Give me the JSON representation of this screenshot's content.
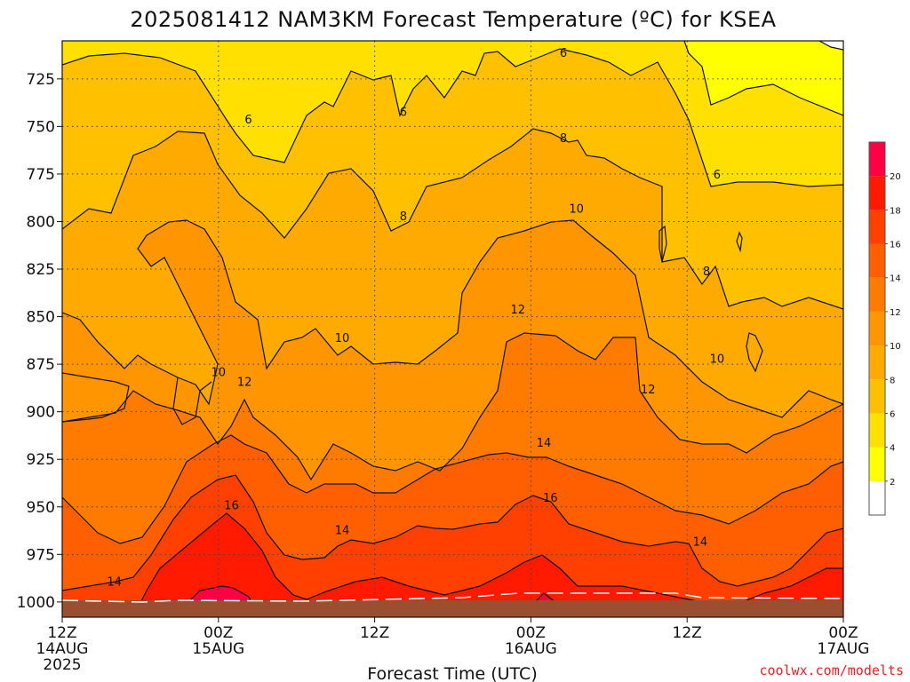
{
  "page": {
    "title": "2025081412 NAM3KM Forecast Temperature (ºC) for KSEA",
    "credit": "coolwx.com/modelts"
  },
  "chart_data": {
    "type": "heatmap",
    "title": "2025081412 NAM3KM Forecast Temperature (ºC) for KSEA",
    "xlabel": "Forecast Time (UTC)",
    "ylabel": "",
    "x_ticks": [
      {
        "hours": 0,
        "lines": [
          "12Z",
          "14AUG",
          "2025"
        ]
      },
      {
        "hours": 12,
        "lines": [
          "00Z",
          "15AUG"
        ]
      },
      {
        "hours": 24,
        "lines": [
          "12Z"
        ]
      },
      {
        "hours": 36,
        "lines": [
          "00Z",
          "16AUG"
        ]
      },
      {
        "hours": 48,
        "lines": [
          "12Z"
        ]
      },
      {
        "hours": 60,
        "lines": [
          "00Z",
          "17AUG"
        ]
      }
    ],
    "xlim": [
      0,
      60
    ],
    "y_ticks": [
      725,
      750,
      775,
      800,
      825,
      850,
      875,
      900,
      925,
      950,
      975,
      1000
    ],
    "ylim": [
      1008,
      705
    ],
    "grid": true,
    "colorbar": {
      "ticks": [
        2,
        4,
        6,
        8,
        10,
        12,
        14,
        16,
        18,
        20
      ],
      "levels": [
        0,
        2,
        4,
        6,
        8,
        10,
        12,
        14,
        16,
        18,
        20,
        22
      ],
      "colors": [
        "#ffffff",
        "#ffff00",
        "#ffe000",
        "#ffc000",
        "#ffaa00",
        "#ff9500",
        "#ff7b00",
        "#ff5f00",
        "#ff4000",
        "#ff1a00",
        "#ff0044"
      ]
    },
    "contour_labels": [
      {
        "text": "6",
        "hours": 38.5,
        "p": 711
      },
      {
        "text": "6",
        "hours": 26.2,
        "p": 742
      },
      {
        "text": "6",
        "hours": 14.3,
        "p": 746
      },
      {
        "text": "8",
        "hours": 38.5,
        "p": 756
      },
      {
        "text": "6",
        "hours": 50.3,
        "p": 775
      },
      {
        "text": "10",
        "hours": 39.5,
        "p": 793
      },
      {
        "text": "8",
        "hours": 26.2,
        "p": 797
      },
      {
        "text": "8",
        "hours": 49.5,
        "p": 826
      },
      {
        "text": "12",
        "hours": 35.0,
        "p": 846
      },
      {
        "text": "10",
        "hours": 21.5,
        "p": 861
      },
      {
        "text": "10",
        "hours": 50.3,
        "p": 872
      },
      {
        "text": "10",
        "hours": 12.0,
        "p": 879
      },
      {
        "text": "12",
        "hours": 14.0,
        "p": 884
      },
      {
        "text": "12",
        "hours": 45.0,
        "p": 888
      },
      {
        "text": "14",
        "hours": 37.0,
        "p": 916
      },
      {
        "text": "16",
        "hours": 37.5,
        "p": 945
      },
      {
        "text": "16",
        "hours": 13.0,
        "p": 949
      },
      {
        "text": "14",
        "hours": 21.5,
        "p": 962
      },
      {
        "text": "14",
        "hours": 49.0,
        "p": 968
      },
      {
        "text": "14",
        "hours": 4.0,
        "p": 989
      }
    ]
  }
}
